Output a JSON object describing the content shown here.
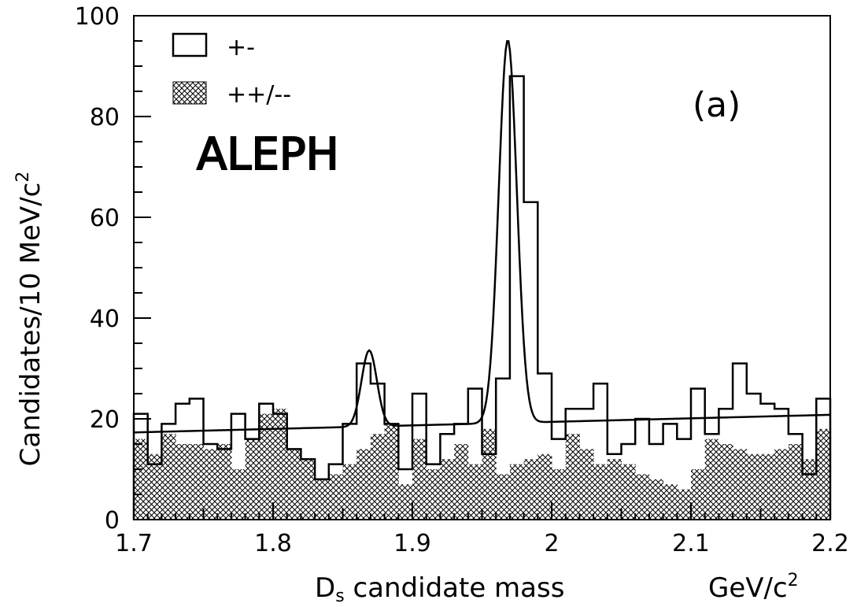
{
  "chart_data": {
    "type": "histogram",
    "xlabel_main": "D",
    "xlabel_sub": "s",
    "xlabel_rest": " candidate mass",
    "xunit": "GeV/c",
    "xunit_sup": "2",
    "ylabel": "Candidates/10 MeV/c",
    "ylabel_sup": "2",
    "xlim": [
      1.7,
      2.2
    ],
    "ylim": [
      0,
      100
    ],
    "xticks": [
      "1.7",
      "1.8",
      "1.9",
      "2",
      "2.1",
      "2.2"
    ],
    "xtick_values": [
      1.7,
      1.8,
      1.9,
      2.0,
      2.1,
      2.2
    ],
    "yticks": [
      "0",
      "20",
      "40",
      "60",
      "80",
      "100"
    ],
    "ytick_values": [
      0,
      20,
      40,
      60,
      80,
      100
    ],
    "bin_width": 0.01,
    "annotations": {
      "panel": "(a)",
      "experiment": "ALEPH"
    },
    "legend_position": "top-left",
    "series": [
      {
        "name": "+-",
        "style": "open",
        "values": [
          21,
          11,
          19,
          23,
          24,
          15,
          14,
          21,
          16,
          23,
          21,
          14,
          12,
          8,
          11,
          19,
          31,
          27,
          19,
          10,
          25,
          11,
          17,
          19,
          26,
          13,
          28,
          88,
          63,
          29,
          16,
          22,
          22,
          27,
          13,
          15,
          20,
          15,
          19,
          16,
          26,
          17,
          22,
          31,
          25,
          23,
          22,
          17,
          9,
          24
        ]
      },
      {
        "name": "++/--",
        "style": "hatched",
        "values": [
          16,
          13,
          17,
          15,
          15,
          14,
          15,
          10,
          16,
          21,
          22,
          14,
          12,
          8,
          9,
          11,
          14,
          17,
          19,
          7,
          16,
          10,
          12,
          15,
          11,
          18,
          9,
          11,
          12,
          13,
          10,
          17,
          14,
          11,
          12,
          11,
          9,
          8,
          7,
          6,
          10,
          16,
          15,
          14,
          13,
          13,
          14,
          15,
          12,
          18
        ]
      },
      {
        "name": "fit",
        "style": "curve",
        "background": {
          "a": 17.3,
          "b": 0.7
        },
        "peaks": [
          {
            "mass": 1.869,
            "height": 15.1,
            "sigma": 0.0055
          },
          {
            "mass": 1.9685,
            "height": 76.0,
            "sigma": 0.0065
          }
        ]
      }
    ]
  }
}
